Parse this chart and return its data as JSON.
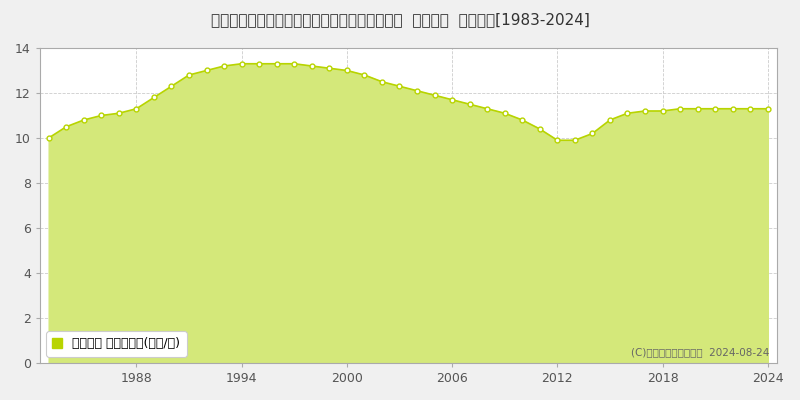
{
  "title": "福島県いわき市勿来町窪田町通１丁目５８番２  地価公示  地価推移[1983-2024]",
  "years": [
    1983,
    1984,
    1985,
    1986,
    1987,
    1988,
    1989,
    1990,
    1991,
    1992,
    1993,
    1994,
    1995,
    1996,
    1997,
    1998,
    1999,
    2000,
    2001,
    2002,
    2003,
    2004,
    2005,
    2006,
    2007,
    2008,
    2009,
    2010,
    2011,
    2012,
    2013,
    2014,
    2015,
    2016,
    2017,
    2018,
    2019,
    2020,
    2021,
    2022,
    2023,
    2024
  ],
  "values": [
    10.0,
    10.5,
    10.8,
    11.0,
    11.1,
    11.3,
    11.8,
    12.3,
    12.8,
    13.0,
    13.2,
    13.3,
    13.3,
    13.3,
    13.3,
    13.2,
    13.1,
    13.0,
    12.8,
    12.5,
    12.3,
    12.1,
    11.9,
    11.7,
    11.5,
    11.3,
    11.1,
    10.8,
    10.4,
    9.9,
    9.9,
    10.2,
    10.8,
    11.1,
    11.2,
    11.2,
    11.3,
    11.3,
    11.3,
    11.3,
    11.3,
    11.3
  ],
  "line_color": "#b8d400",
  "fill_color": "#d4e87a",
  "fill_alpha": 1.0,
  "marker_color": "#b8d400",
  "bg_color": "#f0f0f0",
  "plot_bg_color": "#ffffff",
  "grid_color": "#cccccc",
  "ylim": [
    0,
    14
  ],
  "yticks": [
    0,
    2,
    4,
    6,
    8,
    10,
    12,
    14
  ],
  "xtick_years": [
    1988,
    1994,
    2000,
    2006,
    2012,
    2018,
    2024
  ],
  "legend_label": "地価公示 平均坪単価(万円/坪)",
  "legend_marker_color": "#b8d400",
  "copyright_text": "(C)土地価格ドットコム  2024-08-24",
  "title_fontsize": 11,
  "axis_fontsize": 9,
  "legend_fontsize": 9
}
